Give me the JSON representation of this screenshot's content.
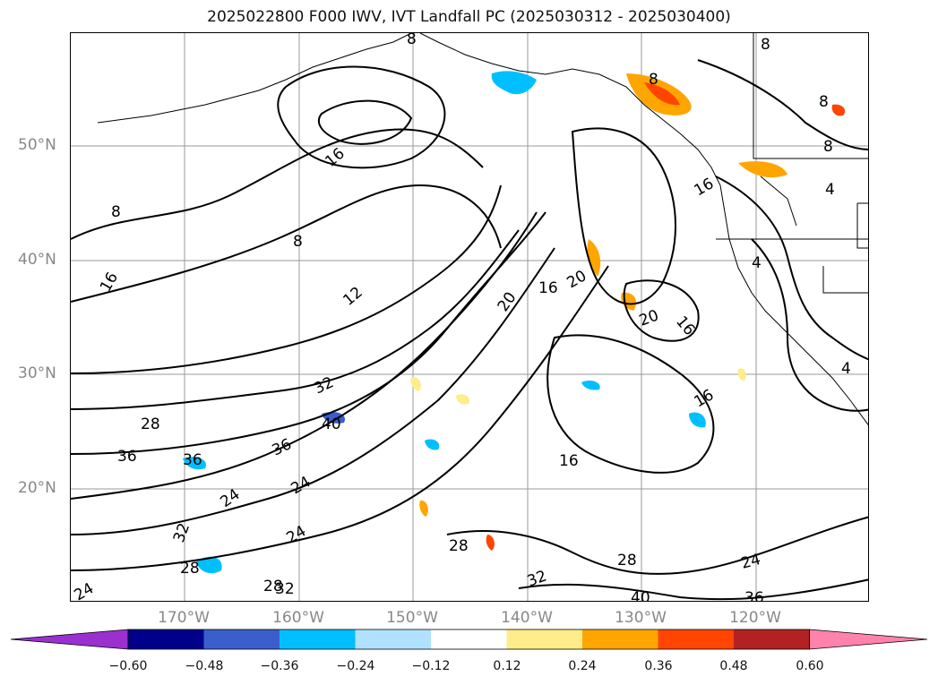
{
  "title": "2025022800 F000 IWV, IVT Landfall PC (2025030312 - 2025030400)",
  "lat_labels": [
    "50°N",
    "40°N",
    "30°N",
    "20°N"
  ],
  "lon_labels": [
    "170°W",
    "160°W",
    "150°W",
    "140°W",
    "130°W",
    "120°W"
  ],
  "contour_labels": [
    "8",
    "8",
    "8",
    "16",
    "8",
    "16",
    "16",
    "12",
    "20",
    "16",
    "20",
    "20",
    "16",
    "16",
    "16",
    "32",
    "40",
    "28",
    "36",
    "36",
    "36",
    "24",
    "24",
    "24",
    "32",
    "28",
    "28",
    "32",
    "32",
    "28",
    "28",
    "24",
    "24",
    "40",
    "36",
    "4",
    "4",
    "4",
    "8",
    "8",
    "8"
  ],
  "colorbar": {
    "ticks": [
      "−0.60",
      "−0.48",
      "−0.36",
      "−0.24",
      "−0.12",
      "0.12",
      "0.24",
      "0.36",
      "0.48",
      "0.60"
    ],
    "colors": [
      "#9b30d0",
      "#00008b",
      "#3a5fcd",
      "#00bfff",
      "#b0e2ff",
      "#ffffff",
      "#ffec8b",
      "#ffa500",
      "#ff4500",
      "#b22222",
      "#ff82ab"
    ]
  }
}
